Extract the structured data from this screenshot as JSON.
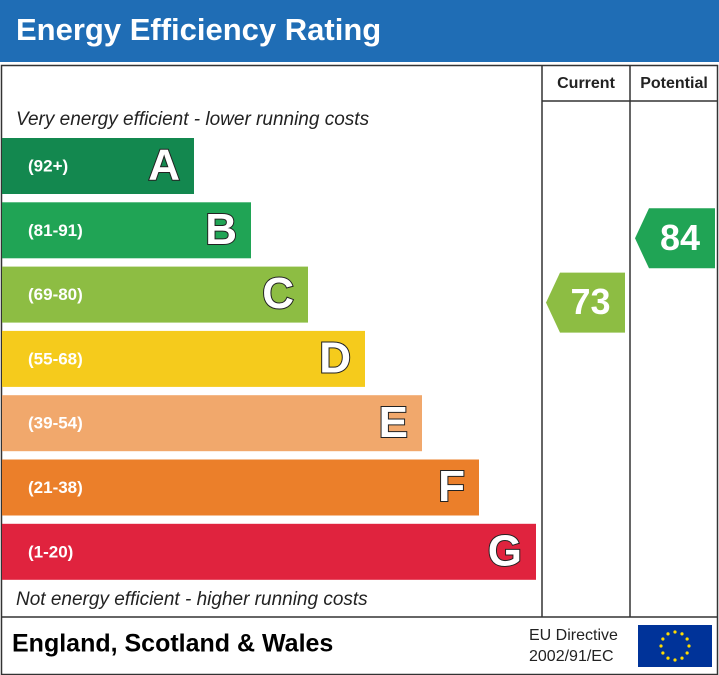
{
  "header": {
    "title": "Energy Efficiency Rating"
  },
  "columns": [
    "Current",
    "Potential"
  ],
  "top_note": "Very energy efficient - lower running costs",
  "bands": [
    {
      "range": "(92+)",
      "letter": "A",
      "color": "#13884f"
    },
    {
      "range": "(81-91)",
      "letter": "B",
      "color": "#20a455"
    },
    {
      "range": "(69-80)",
      "letter": "C",
      "color": "#8dbd43"
    },
    {
      "range": "(55-68)",
      "letter": "D",
      "color": "#f5cb1c"
    },
    {
      "range": "(39-54)",
      "letter": "E",
      "color": "#f1a86c"
    },
    {
      "range": "(21-38)",
      "letter": "F",
      "color": "#eb7f2a"
    },
    {
      "range": "(1-20)",
      "letter": "G",
      "color": "#e0233e"
    }
  ],
  "bottom_note": "Not energy efficient - higher running costs",
  "ratings": {
    "current": 73,
    "potential": 84
  },
  "footer": {
    "region": "England, Scotland & Wales",
    "directive": [
      "EU Directive",
      "2002/91/EC"
    ]
  }
}
